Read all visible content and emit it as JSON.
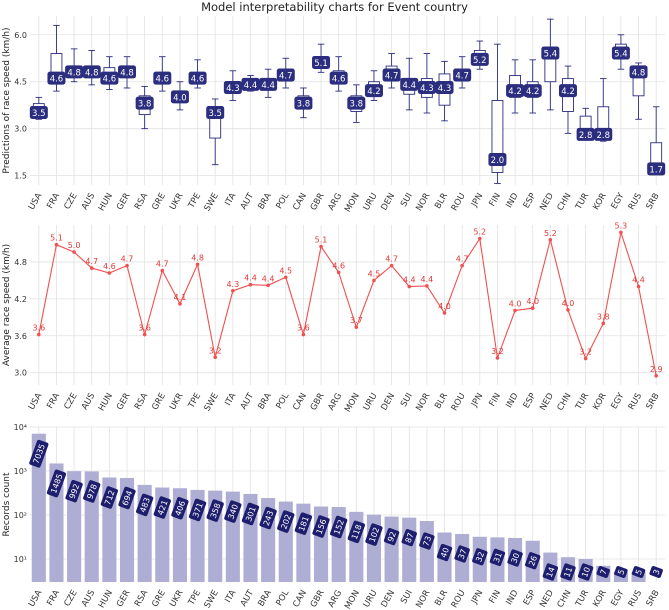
{
  "figure": {
    "title": "Model interpretability charts for Event country"
  },
  "chart_data": [
    {
      "type": "box",
      "ylabel": "Predictions of race speed (km/h)",
      "ylim": [
        1.2,
        6.6
      ],
      "yticks": [
        1.5,
        3.0,
        4.5,
        6.0
      ],
      "grid": true,
      "box_color": "#2b2d7e",
      "categories": [
        "USA",
        "FRA",
        "CZE",
        "AUS",
        "HUN",
        "GER",
        "RSA",
        "GRE",
        "UKR",
        "TPE",
        "SWE",
        "ITA",
        "AUT",
        "BRA",
        "POL",
        "CAN",
        "GBR",
        "ARG",
        "MON",
        "URU",
        "DEN",
        "SUI",
        "NOR",
        "BLR",
        "ROU",
        "JPN",
        "FIN",
        "IND",
        "ESP",
        "NED",
        "CHN",
        "TUR",
        "KOR",
        "EGY",
        "RUS",
        "SRB"
      ],
      "median_labels": [
        "3.5",
        "4.6",
        "4.8",
        "4.8",
        "4.6",
        "4.8",
        "3.8",
        "4.6",
        "4.0",
        "4.6",
        "3.5",
        "4.3",
        "4.4",
        "4.4",
        "4.7",
        "3.8",
        "5.1",
        "4.6",
        "3.8",
        "4.2",
        "4.7",
        "4.4",
        "4.3",
        "4.3",
        "4.7",
        "5.2",
        "2.0",
        "4.2",
        "4.2",
        "5.4",
        "4.2",
        "2.8",
        "2.8",
        "5.4",
        "4.8",
        "1.7"
      ],
      "q1": [
        3.55,
        4.5,
        4.65,
        4.65,
        4.45,
        4.65,
        3.45,
        4.45,
        3.85,
        4.45,
        2.7,
        4.15,
        4.35,
        4.25,
        4.55,
        3.65,
        5.0,
        4.45,
        3.55,
        4.1,
        4.55,
        4.1,
        4.0,
        3.75,
        4.6,
        5.1,
        1.6,
        4.0,
        4.0,
        4.5,
        3.55,
        2.75,
        2.85,
        5.3,
        4.05,
        1.65
      ],
      "q3": [
        3.8,
        5.4,
        5.0,
        5.0,
        4.95,
        4.95,
        4.05,
        4.8,
        4.2,
        4.75,
        3.55,
        4.5,
        4.5,
        4.55,
        4.9,
        4.05,
        5.3,
        4.85,
        4.05,
        4.5,
        5.0,
        4.6,
        4.6,
        4.75,
        4.9,
        5.5,
        3.9,
        4.7,
        4.5,
        5.6,
        4.6,
        3.4,
        3.7,
        5.7,
        4.8,
        2.55
      ],
      "whisker_low": [
        3.3,
        4.2,
        4.5,
        4.4,
        4.25,
        4.3,
        3.0,
        4.2,
        3.6,
        4.3,
        1.85,
        3.9,
        4.2,
        4.0,
        4.3,
        3.35,
        4.8,
        4.2,
        3.2,
        3.9,
        4.3,
        3.6,
        3.5,
        3.25,
        4.3,
        4.9,
        1.25,
        3.5,
        3.5,
        3.6,
        2.85,
        2.7,
        2.6,
        4.9,
        3.3,
        1.55
      ],
      "whisker_high": [
        4.0,
        6.3,
        5.55,
        5.5,
        5.3,
        5.3,
        4.35,
        5.3,
        4.5,
        5.2,
        3.95,
        4.85,
        4.7,
        4.9,
        5.25,
        4.3,
        5.7,
        5.3,
        4.4,
        4.85,
        5.4,
        5.25,
        5.4,
        5.15,
        5.3,
        5.8,
        5.7,
        5.2,
        5.2,
        6.5,
        5.0,
        3.65,
        4.6,
        6.0,
        5.1,
        3.7
      ]
    },
    {
      "type": "line",
      "ylabel": "Average race speed (km/h)",
      "ylim": [
        2.8,
        5.4
      ],
      "yticks": [
        3.0,
        3.6,
        4.2,
        4.8
      ],
      "grid": true,
      "line_color": "#f05050",
      "categories": [
        "USA",
        "FRA",
        "CZE",
        "AUS",
        "HUN",
        "GER",
        "RSA",
        "GRE",
        "UKR",
        "TPE",
        "SWE",
        "ITA",
        "AUT",
        "BRA",
        "POL",
        "CAN",
        "GBR",
        "ARG",
        "MON",
        "URU",
        "DEN",
        "SUI",
        "NOR",
        "BLR",
        "ROU",
        "JPN",
        "FIN",
        "IND",
        "ESP",
        "NED",
        "CHN",
        "TUR",
        "KOR",
        "EGY",
        "RUS",
        "SRB"
      ],
      "values": [
        3.62,
        5.08,
        4.96,
        4.7,
        4.62,
        4.74,
        3.62,
        4.66,
        4.12,
        4.76,
        3.25,
        4.33,
        4.43,
        4.42,
        4.55,
        3.62,
        5.05,
        4.63,
        3.74,
        4.5,
        4.74,
        4.4,
        4.41,
        3.97,
        4.74,
        5.18,
        3.24,
        4.01,
        4.05,
        5.16,
        4.02,
        3.23,
        3.8,
        5.28,
        4.4,
        2.95
      ],
      "data_labels": [
        "3.6",
        "5.1",
        "5.0",
        "4.7",
        "4.6",
        "4.7",
        "3.6",
        "4.7",
        "4.1",
        "4.8",
        "3.2",
        "4.3",
        "4.4",
        "4.4",
        "4.5",
        "3.6",
        "5.1",
        "4.6",
        "3.7",
        "4.5",
        "4.7",
        "4.4",
        "4.4",
        "4.0",
        "4.7",
        "5.2",
        "3.2",
        "4.0",
        "4.0",
        "5.2",
        "4.0",
        "3.2",
        "3.8",
        "5.3",
        "4.4",
        "2.9"
      ]
    },
    {
      "type": "bar",
      "ylabel": "Records count",
      "yscale": "log",
      "ylim": [
        3,
        10000
      ],
      "ytick_labels": [
        "10¹",
        "10²",
        "10³",
        "10⁴"
      ],
      "grid": true,
      "bar_color": "#aeaed4",
      "label_color": "#1e1e6e",
      "categories": [
        "USA",
        "FRA",
        "CZE",
        "AUS",
        "HUN",
        "GER",
        "RSA",
        "GRE",
        "UKR",
        "TPE",
        "SWE",
        "ITA",
        "AUT",
        "BRA",
        "POL",
        "CAN",
        "GBR",
        "ARG",
        "MON",
        "URU",
        "DEN",
        "SUI",
        "NOR",
        "BLR",
        "ROU",
        "JPN",
        "FIN",
        "IND",
        "ESP",
        "NED",
        "CHN",
        "TUR",
        "KOR",
        "EGY",
        "RUS",
        "SRB"
      ],
      "values": [
        7035,
        1485,
        992,
        978,
        712,
        694,
        483,
        421,
        406,
        371,
        358,
        340,
        301,
        243,
        202,
        181,
        156,
        152,
        118,
        102,
        92,
        87,
        73,
        40,
        37,
        32,
        31,
        30,
        26,
        14,
        11,
        10,
        7,
        5,
        5,
        3
      ],
      "data_labels": [
        "7035",
        "1485",
        "992",
        "978",
        "712",
        "694",
        "483",
        "421",
        "406",
        "371",
        "358",
        "340",
        "301",
        "243",
        "202",
        "181",
        "156",
        "152",
        "118",
        "102",
        "92",
        "87",
        "73",
        "40",
        "37",
        "32",
        "31",
        "30",
        "26",
        "14",
        "11",
        "10",
        "7",
        "5",
        "5",
        "3"
      ]
    }
  ]
}
